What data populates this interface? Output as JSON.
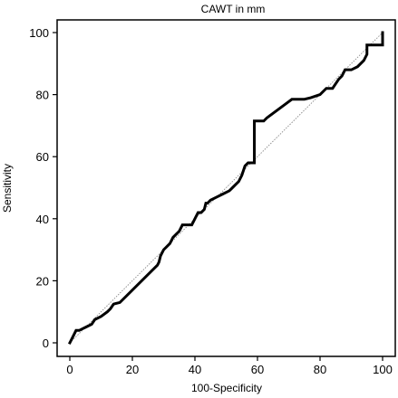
{
  "chart_data": {
    "type": "line",
    "title": "CAWT in mm",
    "xlabel": "100-Specificity",
    "ylabel": "Sensitivity",
    "xlim": [
      0,
      100
    ],
    "ylim": [
      0,
      100
    ],
    "xticks": [
      0,
      20,
      40,
      60,
      80,
      100
    ],
    "yticks": [
      0,
      20,
      40,
      60,
      80,
      100
    ],
    "grid": false,
    "legend": "none",
    "series": [
      {
        "style": "roc-curve",
        "color": "#000000",
        "x": [
          0,
          1,
          2,
          3,
          4,
          5,
          7,
          8,
          10,
          12,
          13,
          14,
          16,
          18,
          20,
          22,
          24,
          26,
          28,
          28.5,
          29,
          30,
          31,
          32,
          33,
          34,
          35,
          36,
          37,
          38,
          39,
          40,
          41,
          42,
          43,
          43.5,
          44,
          45,
          47,
          49,
          51,
          52,
          53,
          54,
          55,
          56,
          57,
          58,
          59,
          59,
          62,
          63,
          65,
          67,
          69,
          71,
          73,
          75,
          77,
          80,
          82,
          84,
          86,
          87,
          88,
          90,
          92,
          94,
          95,
          95,
          100,
          100
        ],
        "y": [
          0,
          2,
          4,
          4,
          4.5,
          5,
          6,
          7.5,
          8.5,
          10,
          11,
          12.5,
          13,
          15,
          17,
          19,
          21,
          23,
          25,
          26,
          28,
          30,
          31,
          32,
          34,
          35,
          36,
          38,
          38,
          38,
          38,
          40,
          42,
          42,
          43,
          45,
          45,
          46,
          47,
          48,
          49,
          50,
          51,
          52,
          54,
          57,
          58,
          58,
          58,
          71.5,
          71.5,
          72.5,
          74,
          75.5,
          77,
          78.5,
          78.5,
          78.5,
          79,
          80,
          82,
          82,
          85,
          86,
          88,
          88,
          89,
          91,
          93,
          96,
          96,
          100
        ]
      },
      {
        "style": "reference-diagonal",
        "color": "#888888",
        "x": [
          0,
          100
        ],
        "y": [
          0,
          100
        ]
      }
    ]
  }
}
